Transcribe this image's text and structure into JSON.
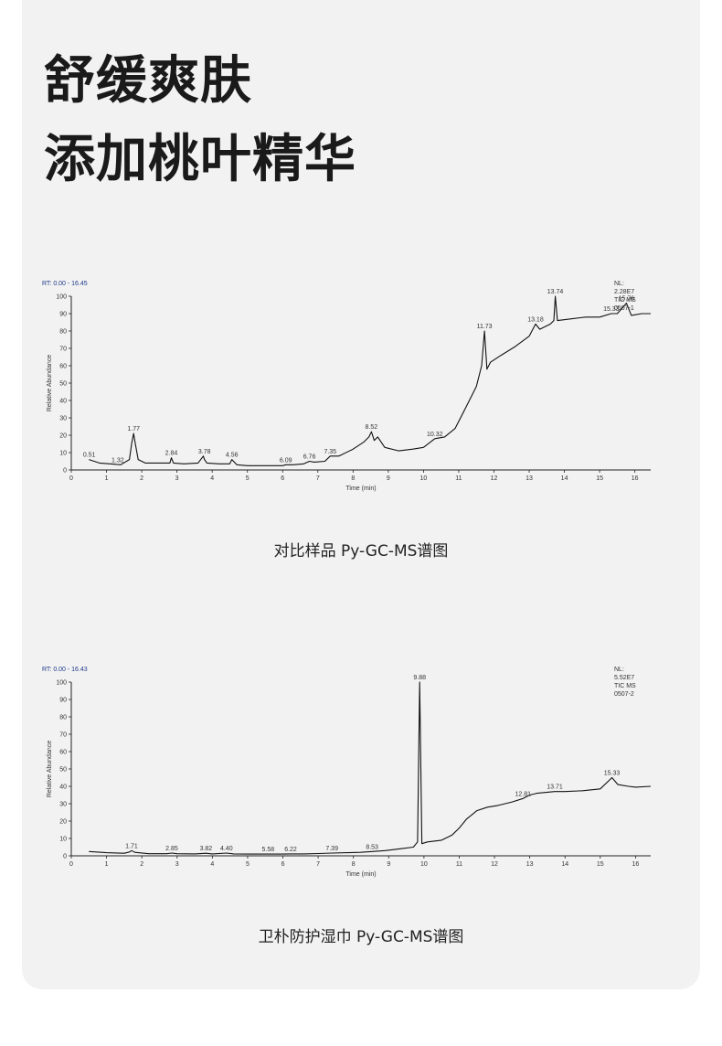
{
  "headline": {
    "line1": "舒缓爽肤",
    "line2": "添加桃叶精华"
  },
  "colors": {
    "card_bg": "#f2f2f2",
    "trace": "#111111",
    "rt_label": "#1f3a8a"
  },
  "chart_data": [
    {
      "type": "line",
      "rt_label": "RT: 0.00 - 16.45",
      "ylabel": "Relative Abundance",
      "xlabel": "Time (min)",
      "xlim": [
        0,
        16.45
      ],
      "ylim": [
        0,
        100
      ],
      "x_ticks": [
        "0",
        "1",
        "2",
        "3",
        "4",
        "5",
        "6",
        "7",
        "8",
        "9",
        "10",
        "11",
        "12",
        "13",
        "14",
        "15",
        "16"
      ],
      "y_ticks": [
        "0",
        "10",
        "20",
        "30",
        "40",
        "50",
        "60",
        "70",
        "80",
        "90",
        "100"
      ],
      "info": [
        "NL:",
        "2.28E7",
        "TIC  MS",
        "0507-1"
      ],
      "series": [
        {
          "x": [
            0.5,
            0.8,
            1.1,
            1.4,
            1.65,
            1.72,
            1.77,
            1.82,
            1.9,
            2.1,
            2.5,
            2.8,
            2.84,
            2.9,
            3.2,
            3.6,
            3.75,
            3.78,
            3.85,
            4.2,
            4.5,
            4.56,
            4.7,
            5.0,
            5.5,
            6.0,
            6.09,
            6.3,
            6.6,
            6.76,
            6.9,
            7.2,
            7.35,
            7.6,
            8.0,
            8.3,
            8.45,
            8.52,
            8.6,
            8.7,
            8.9,
            9.3,
            9.7,
            10.0,
            10.32,
            10.6,
            10.9,
            11.2,
            11.5,
            11.65,
            11.73,
            11.8,
            11.9,
            12.2,
            12.6,
            13.0,
            13.18,
            13.3,
            13.6,
            13.7,
            13.74,
            13.8,
            14.2,
            14.6,
            15.0,
            15.33,
            15.5,
            15.76,
            15.9,
            16.2,
            16.45
          ],
          "y": [
            6,
            4,
            3.5,
            3,
            6,
            16,
            21,
            15,
            6,
            4,
            4,
            4,
            7,
            4,
            3.5,
            4,
            8,
            6,
            4,
            3.5,
            3.5,
            6,
            3,
            2.5,
            2.5,
            2.5,
            3,
            3,
            3.5,
            5,
            4.5,
            5,
            8,
            8,
            12,
            16,
            19,
            22,
            17,
            19,
            13,
            11,
            12,
            13,
            18,
            19,
            24,
            36,
            48,
            60,
            80,
            58,
            62,
            66,
            71,
            77,
            84,
            81,
            84,
            86,
            100,
            86,
            87,
            88,
            88,
            90,
            90,
            96,
            89,
            90,
            90
          ]
        }
      ],
      "peak_labels": [
        {
          "x": 0.51,
          "y": 6,
          "label": "0.51"
        },
        {
          "x": 1.32,
          "y": 3,
          "label": "1.32"
        },
        {
          "x": 1.77,
          "y": 21,
          "label": "1.77"
        },
        {
          "x": 2.84,
          "y": 7,
          "label": "2.84"
        },
        {
          "x": 3.78,
          "y": 8,
          "label": "3.78"
        },
        {
          "x": 4.56,
          "y": 6,
          "label": "4.56"
        },
        {
          "x": 6.09,
          "y": 3,
          "label": "6.09"
        },
        {
          "x": 6.76,
          "y": 5,
          "label": "6.76"
        },
        {
          "x": 7.35,
          "y": 8,
          "label": "7.35"
        },
        {
          "x": 8.52,
          "y": 22,
          "label": "8.52"
        },
        {
          "x": 10.32,
          "y": 18,
          "label": "10.32"
        },
        {
          "x": 11.73,
          "y": 80,
          "label": "11.73"
        },
        {
          "x": 13.18,
          "y": 84,
          "label": "13.18"
        },
        {
          "x": 13.74,
          "y": 100,
          "label": "13.74"
        },
        {
          "x": 15.33,
          "y": 90,
          "label": "15.33"
        },
        {
          "x": 15.76,
          "y": 96,
          "label": "15.76"
        }
      ]
    },
    {
      "type": "line",
      "rt_label": "RT: 0.00 - 16.43",
      "ylabel": "Relative Abundance",
      "xlabel": "Time (min)",
      "xlim": [
        0,
        16.43
      ],
      "ylim": [
        0,
        100
      ],
      "x_ticks": [
        "0",
        "1",
        "2",
        "3",
        "4",
        "5",
        "6",
        "7",
        "8",
        "9",
        "10",
        "11",
        "12",
        "13",
        "14",
        "15",
        "16"
      ],
      "y_ticks": [
        "0",
        "10",
        "20",
        "30",
        "40",
        "50",
        "60",
        "70",
        "80",
        "90",
        "100"
      ],
      "info": [
        "NL:",
        "5.52E7",
        "TIC  MS",
        "0507-2"
      ],
      "series": [
        {
          "x": [
            0.5,
            1.0,
            1.5,
            1.65,
            1.71,
            1.8,
            2.2,
            2.7,
            2.85,
            3.0,
            3.5,
            3.82,
            4.0,
            4.4,
            4.6,
            5.0,
            5.58,
            6.0,
            6.22,
            6.6,
            7.0,
            7.39,
            7.8,
            8.2,
            8.53,
            8.9,
            9.3,
            9.7,
            9.82,
            9.88,
            9.94,
            10.1,
            10.5,
            10.8,
            11.0,
            11.2,
            11.5,
            11.8,
            12.1,
            12.5,
            12.81,
            13.0,
            13.2,
            13.71,
            14.0,
            14.5,
            15.0,
            15.33,
            15.5,
            15.8,
            16.0,
            16.43
          ],
          "y": [
            2.5,
            1.8,
            1.5,
            2.2,
            3,
            2,
            1.2,
            1.2,
            1.6,
            1.2,
            1.1,
            1.5,
            1.1,
            1.6,
            1.1,
            1,
            1,
            1,
            1.1,
            1.1,
            1.3,
            1.6,
            1.8,
            2,
            2.5,
            3,
            4,
            5,
            8,
            100,
            7,
            8,
            9,
            12,
            16,
            21,
            26,
            28,
            29,
            31,
            33,
            35,
            36,
            37,
            37,
            37.5,
            38.5,
            45,
            41,
            40,
            39.5,
            40
          ]
        }
      ],
      "peak_labels": [
        {
          "x": 1.71,
          "y": 3,
          "label": "1.71"
        },
        {
          "x": 2.85,
          "y": 1.6,
          "label": "2.85"
        },
        {
          "x": 3.82,
          "y": 1.5,
          "label": "3.82"
        },
        {
          "x": 4.4,
          "y": 1.6,
          "label": "4.40"
        },
        {
          "x": 5.58,
          "y": 1,
          "label": "5.58"
        },
        {
          "x": 6.22,
          "y": 1.1,
          "label": "6.22"
        },
        {
          "x": 7.39,
          "y": 1.6,
          "label": "7.39"
        },
        {
          "x": 8.53,
          "y": 2.5,
          "label": "8.53"
        },
        {
          "x": 9.88,
          "y": 100,
          "label": "9.88"
        },
        {
          "x": 12.81,
          "y": 33,
          "label": "12.81"
        },
        {
          "x": 13.71,
          "y": 37,
          "label": "13.71"
        },
        {
          "x": 15.33,
          "y": 45,
          "label": "15.33"
        }
      ]
    }
  ],
  "captions": [
    "对比样品 Py-GC-MS谱图",
    "卫朴防护湿巾 Py-GC-MS谱图"
  ]
}
